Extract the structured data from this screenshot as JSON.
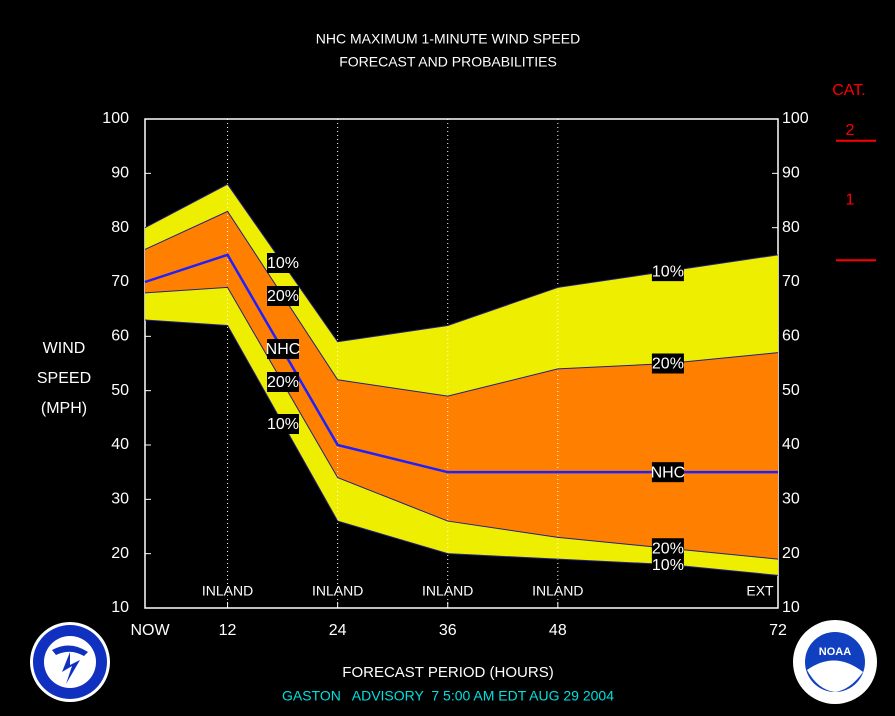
{
  "chart_data": {
    "type": "band",
    "title": [
      "NHC MAXIMUM 1-MINUTE WIND SPEED",
      "FORECAST AND PROBABILITIES"
    ],
    "y_label": [
      "WIND",
      "SPEED",
      "(MPH)"
    ],
    "x_label": "FORECAST PERIOD (HOURS)",
    "footer": "GASTON   ADVISORY  7 5:00 AM EDT AUG 29 2004",
    "x": [
      3,
      12,
      24,
      36,
      48,
      60,
      72
    ],
    "xlim": [
      3,
      72
    ],
    "xticks": [
      {
        "value": 3,
        "label": "NOW"
      },
      12,
      24,
      36,
      48,
      72
    ],
    "ylim": [
      10,
      100
    ],
    "yticks": [
      10,
      20,
      30,
      40,
      50,
      60,
      70,
      80,
      90,
      100
    ],
    "series": [
      {
        "name": "10%",
        "color": "#eeee00",
        "values": [
          80,
          88,
          59,
          62,
          69,
          72,
          75
        ]
      },
      {
        "name": "20%",
        "color": "#ff8000",
        "values": [
          76,
          83,
          52,
          49,
          54,
          55,
          57
        ]
      },
      {
        "name": "NHC",
        "color": "#2020ff",
        "values": [
          70,
          75,
          40,
          35,
          35,
          35,
          35
        ]
      },
      {
        "name": "20%",
        "color": "#ff8000",
        "values": [
          68,
          69,
          34,
          26,
          23,
          21,
          19
        ]
      },
      {
        "name": "10%",
        "color": "#eeee00",
        "values": [
          63,
          62,
          26,
          20,
          19,
          18,
          16
        ]
      }
    ],
    "period_labels": [
      {
        "x": 12,
        "label": "INLAND"
      },
      {
        "x": 24,
        "label": "INLAND"
      },
      {
        "x": 36,
        "label": "INLAND"
      },
      {
        "x": 48,
        "label": "INLAND"
      },
      {
        "x": 72,
        "label": "EXT"
      }
    ],
    "category_title": "CAT.",
    "categories": [
      {
        "label": "2",
        "threshold": 96
      },
      {
        "label": "1",
        "threshold": 74
      }
    ],
    "category_color": "#ff0000",
    "footer_color": "#00e0e0",
    "logo_text": "NOAA"
  }
}
